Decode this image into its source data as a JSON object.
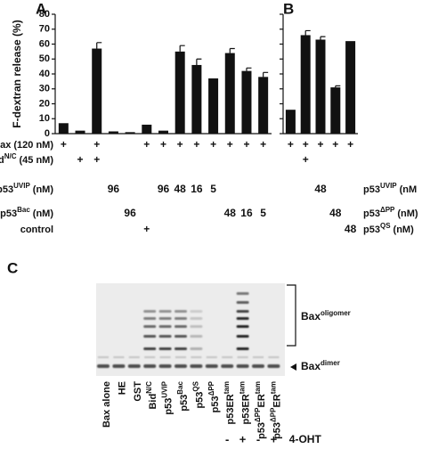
{
  "chart_data": [
    {
      "type": "bar",
      "panel": "A",
      "ylabel": "F-dextran release (%)",
      "color": "#111111",
      "values": [
        7,
        2,
        57,
        1.5,
        1,
        6,
        2,
        55,
        46,
        37,
        54,
        42,
        38
      ],
      "errors": [
        null,
        null,
        4,
        null,
        null,
        null,
        null,
        4,
        4,
        null,
        3,
        2,
        3
      ],
      "ylim": [
        0,
        80
      ],
      "yticks": [
        0,
        10,
        20,
        30,
        40,
        50,
        60,
        70,
        80
      ],
      "show_tick_labels": true
    },
    {
      "type": "bar",
      "panel": "B",
      "color": "#111111",
      "values": [
        16,
        66,
        63,
        31,
        62
      ],
      "errors": [
        null,
        3,
        2,
        1,
        null
      ],
      "ylim": [
        0,
        80
      ],
      "yticks": [
        0,
        10,
        20,
        30,
        40,
        50,
        60,
        70,
        80
      ],
      "show_tick_labels": false
    }
  ],
  "conditions_a": [
    {
      "label": [
        "Bax",
        "",
        "(120 nM)"
      ],
      "cells": [
        "+",
        null,
        "+",
        null,
        null,
        "+",
        "+",
        "+",
        "+",
        "+",
        "+",
        "+",
        "+"
      ]
    },
    {
      "label": [
        "Bid",
        "N/C",
        "(45 nM)"
      ],
      "cells": [
        null,
        "+",
        "+",
        null,
        null,
        null,
        null,
        null,
        null,
        null,
        null,
        null,
        null
      ]
    },
    {
      "label": [
        "p53",
        "UVIP",
        "(nM)"
      ],
      "cells": [
        null,
        null,
        null,
        96,
        null,
        null,
        96,
        48,
        16,
        5,
        null,
        null,
        null
      ]
    },
    {
      "label": [
        "p53",
        "Bac",
        "(nM)"
      ],
      "cells": [
        null,
        null,
        null,
        null,
        96,
        null,
        null,
        null,
        null,
        null,
        48,
        16,
        5
      ]
    },
    {
      "label": [
        "control"
      ],
      "cells": [
        null,
        null,
        null,
        null,
        null,
        "+",
        null,
        null,
        null,
        null,
        null,
        null,
        null
      ]
    }
  ],
  "conditions_b": [
    {
      "cells": [
        "+",
        "+",
        "+",
        "+",
        "+"
      ]
    },
    {
      "cells": [
        null,
        "+",
        null,
        null,
        null
      ]
    },
    {
      "label": [
        "p53",
        "UVIP",
        "(nM"
      ],
      "cells": [
        null,
        null,
        48,
        null,
        null
      ]
    },
    {
      "label": [
        "p53",
        "ΔPP",
        "(nM)"
      ],
      "cells": [
        null,
        null,
        null,
        48,
        null
      ]
    },
    {
      "label": [
        "p53",
        "QS",
        "(nM)"
      ],
      "cells": [
        null,
        null,
        null,
        null,
        48
      ]
    }
  ],
  "gel": {
    "panel": "C",
    "lanes": [
      [
        "Bax alone"
      ],
      [
        "HE"
      ],
      [
        "GST"
      ],
      [
        "Bid",
        "N/C"
      ],
      [
        "p53",
        "UVIP"
      ],
      [
        "p53",
        "Bac"
      ],
      [
        "p53",
        "QS"
      ],
      [
        "p53",
        "ΔPP"
      ],
      [
        "p53ER",
        "tam"
      ],
      [
        "p53ER",
        "tam"
      ],
      [
        "p53",
        "ΔPP",
        "ER",
        "tam"
      ],
      [
        "p53",
        "ΔPP",
        "ER",
        "tam"
      ]
    ],
    "treatment": [
      null,
      null,
      null,
      null,
      null,
      null,
      null,
      null,
      "-",
      "+",
      "-",
      "+"
    ],
    "treatment_label": "4-OHT",
    "oligomer_label": [
      "Bax",
      "oligomer"
    ],
    "dimer_label": [
      "Bax",
      "dimer"
    ]
  }
}
